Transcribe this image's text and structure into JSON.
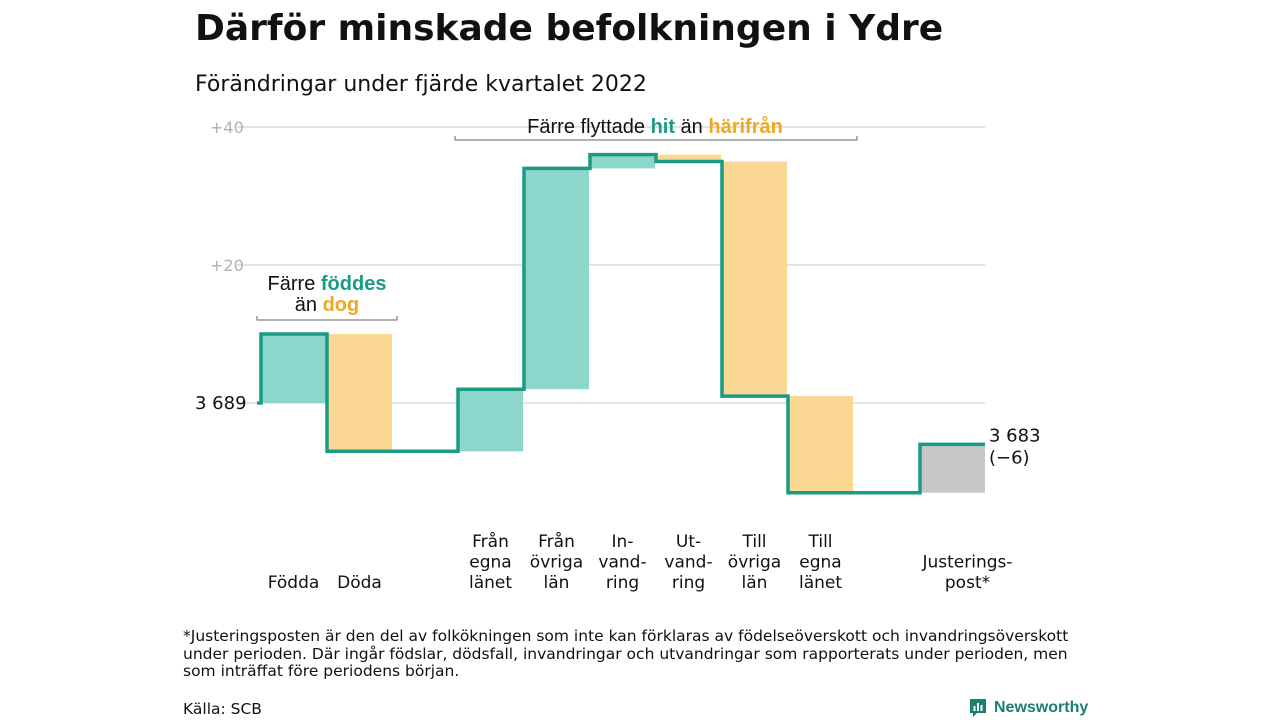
{
  "title": "Därför minskade befolkningen i Ydre",
  "subtitle": "Förändringar under fjärde kvartalet 2022",
  "colors": {
    "teal": "#1a9b86",
    "teal_fill": "#8dd6cb",
    "orange_fill": "#fbd794",
    "orange_text": "#f0a81e",
    "gray_fill": "#c8c8c8",
    "grid": "#d9d9d9",
    "tick": "#b0b0b0"
  },
  "chart_data": {
    "type": "waterfall",
    "base_value": 3689,
    "base_label": "3 689",
    "end_label": "3 683",
    "end_change_label": "(−6)",
    "ylim": [
      -13,
      42
    ],
    "yticks": [
      {
        "value": 20,
        "label": "+20"
      },
      {
        "value": 40,
        "label": "+40"
      }
    ],
    "steps": [
      {
        "label": [
          "Födda"
        ],
        "change": 10,
        "kind": "in"
      },
      {
        "label": [
          "Döda"
        ],
        "change": -17,
        "kind": "out"
      },
      {
        "label": [
          "Från",
          "egna",
          "länet"
        ],
        "change": 9,
        "kind": "in"
      },
      {
        "label": [
          "Från",
          "övriga",
          "län"
        ],
        "change": 32,
        "kind": "in"
      },
      {
        "label": [
          "In-",
          "vand-",
          "ring"
        ],
        "change": 2,
        "kind": "in"
      },
      {
        "label": [
          "Ut-",
          "vand-",
          "ring"
        ],
        "change": -1,
        "kind": "out"
      },
      {
        "label": [
          "Till",
          "övriga",
          "län"
        ],
        "change": -34,
        "kind": "out"
      },
      {
        "label": [
          "Till",
          "egna",
          "länet"
        ],
        "change": -14,
        "kind": "out"
      },
      {
        "label": [
          "Justerings-",
          "post*"
        ],
        "change": 7,
        "kind": "adjust"
      }
    ],
    "annotations": [
      {
        "lines": [
          [
            {
              "text": "Färre ",
              "style": "plain"
            },
            {
              "text": "föddes",
              "style": "teal"
            }
          ],
          [
            {
              "text": "än ",
              "style": "plain"
            },
            {
              "text": "dog",
              "style": "orange"
            }
          ]
        ]
      },
      {
        "lines": [
          [
            {
              "text": "Färre flyttade ",
              "style": "plain"
            },
            {
              "text": "hit",
              "style": "teal"
            },
            {
              "text": " än ",
              "style": "plain"
            },
            {
              "text": "härifrån",
              "style": "orange"
            }
          ]
        ]
      }
    ]
  },
  "footnote": "*Justeringsposten är den del av folkökningen som inte kan förklaras av födelseöverskott och invandringsöverskott under perioden. Där ingår födslar, dödsfall, invandringar och utvandringar som rapporterats under perioden, men som inträffat före periodens början.",
  "source": "Källa: SCB",
  "brand": "Newsworthy"
}
